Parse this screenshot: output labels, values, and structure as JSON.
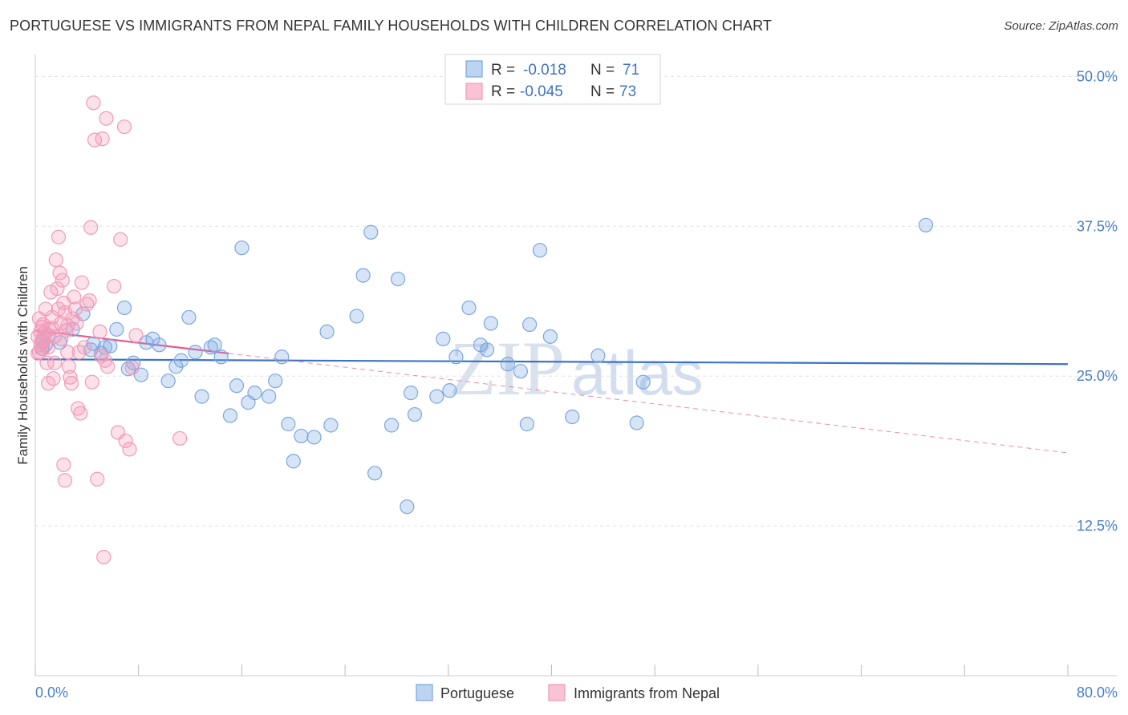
{
  "header": {
    "title": "PORTUGUESE VS IMMIGRANTS FROM NEPAL FAMILY HOUSEHOLDS WITH CHILDREN CORRELATION CHART",
    "source": "Source: ZipAtlas.com"
  },
  "watermark": {
    "zip": "ZIP",
    "atlas": "atlas"
  },
  "chart_data": {
    "type": "scatter",
    "ylabel": "Family Households with Children",
    "xlim": [
      0,
      80
    ],
    "ylim": [
      0,
      52.5
    ],
    "x_tick_labels": [
      "0.0%",
      "80.0%"
    ],
    "y_ticks": [
      12.5,
      25.0,
      37.5,
      50.0
    ],
    "y_tick_labels": [
      "12.5%",
      "25.0%",
      "37.5%",
      "50.0%"
    ],
    "grid": true,
    "legend_placement": "top-center",
    "legend": [
      {
        "r_label": "R =",
        "r_value": "-0.018",
        "n_label": "N =",
        "n_value": "71"
      },
      {
        "r_label": "R =",
        "r_value": "-0.045",
        "n_label": "N =",
        "n_value": "73"
      }
    ],
    "series": [
      {
        "name": "Portuguese",
        "color": "#7aa7e0",
        "line_color": "#3a74c8",
        "trend": {
          "x": [
            0,
            80
          ],
          "y": [
            26.4,
            26.0
          ]
        },
        "points": [
          [
            0.6,
            27.9
          ],
          [
            0.8,
            27.6
          ],
          [
            1.0,
            28.4
          ],
          [
            1.9,
            27.8
          ],
          [
            2.9,
            28.9
          ],
          [
            3.7,
            30.2
          ],
          [
            4.3,
            27.2
          ],
          [
            4.5,
            27.7
          ],
          [
            5.1,
            26.9
          ],
          [
            5.4,
            27.4
          ],
          [
            5.8,
            27.5
          ],
          [
            6.3,
            28.9
          ],
          [
            6.9,
            30.7
          ],
          [
            7.2,
            25.6
          ],
          [
            7.6,
            26.1
          ],
          [
            8.2,
            25.1
          ],
          [
            8.6,
            27.8
          ],
          [
            9.1,
            28.1
          ],
          [
            9.6,
            27.6
          ],
          [
            10.3,
            24.6
          ],
          [
            10.9,
            25.8
          ],
          [
            11.3,
            26.3
          ],
          [
            11.9,
            29.9
          ],
          [
            12.4,
            27.0
          ],
          [
            12.9,
            23.3
          ],
          [
            13.6,
            27.4
          ],
          [
            13.9,
            27.6
          ],
          [
            14.4,
            26.6
          ],
          [
            15.1,
            21.7
          ],
          [
            15.6,
            24.2
          ],
          [
            16.0,
            35.7
          ],
          [
            16.5,
            22.8
          ],
          [
            17.0,
            23.6
          ],
          [
            18.1,
            23.3
          ],
          [
            18.6,
            24.6
          ],
          [
            19.1,
            26.6
          ],
          [
            19.6,
            21.0
          ],
          [
            20.6,
            20.0
          ],
          [
            21.6,
            19.9
          ],
          [
            22.6,
            28.7
          ],
          [
            22.9,
            20.9
          ],
          [
            20.0,
            17.9
          ],
          [
            24.9,
            30.0
          ],
          [
            25.4,
            33.4
          ],
          [
            26.0,
            37.0
          ],
          [
            26.3,
            16.9
          ],
          [
            27.6,
            20.9
          ],
          [
            28.1,
            33.1
          ],
          [
            28.8,
            14.1
          ],
          [
            29.1,
            23.6
          ],
          [
            29.4,
            21.8
          ],
          [
            31.1,
            23.3
          ],
          [
            31.6,
            28.1
          ],
          [
            32.1,
            23.8
          ],
          [
            32.6,
            26.6
          ],
          [
            33.6,
            30.7
          ],
          [
            34.5,
            27.6
          ],
          [
            35.0,
            27.2
          ],
          [
            35.3,
            29.4
          ],
          [
            36.6,
            26.0
          ],
          [
            37.6,
            25.4
          ],
          [
            38.1,
            21.0
          ],
          [
            38.3,
            29.3
          ],
          [
            39.1,
            35.5
          ],
          [
            39.9,
            28.3
          ],
          [
            41.6,
            21.6
          ],
          [
            43.6,
            26.7
          ],
          [
            46.6,
            21.1
          ],
          [
            47.1,
            24.5
          ],
          [
            69.0,
            37.6
          ],
          [
            0.5,
            27.3
          ]
        ]
      },
      {
        "name": "Immigrants from Nepal",
        "color": "#f29ab8",
        "line_color": "#e85a8a",
        "trend": {
          "x": [
            0,
            80
          ],
          "y": [
            28.8,
            18.6
          ]
        },
        "trend_solid_until_x": 15.0,
        "points": [
          [
            0.2,
            28.3
          ],
          [
            0.2,
            26.9
          ],
          [
            0.3,
            29.8
          ],
          [
            0.4,
            27.6
          ],
          [
            0.5,
            29.1
          ],
          [
            0.5,
            28.0
          ],
          [
            0.6,
            27.3
          ],
          [
            0.7,
            28.6
          ],
          [
            0.8,
            30.6
          ],
          [
            0.9,
            26.1
          ],
          [
            1.0,
            27.4
          ],
          [
            1.1,
            28.9
          ],
          [
            1.2,
            32.0
          ],
          [
            1.3,
            29.0
          ],
          [
            1.4,
            24.8
          ],
          [
            1.5,
            28.3
          ],
          [
            1.6,
            34.7
          ],
          [
            1.7,
            32.3
          ],
          [
            1.8,
            30.6
          ],
          [
            1.8,
            36.6
          ],
          [
            1.9,
            33.6
          ],
          [
            2.0,
            29.4
          ],
          [
            2.1,
            33.0
          ],
          [
            2.2,
            31.1
          ],
          [
            2.3,
            30.3
          ],
          [
            2.4,
            28.8
          ],
          [
            2.5,
            29.2
          ],
          [
            2.2,
            17.6
          ],
          [
            2.3,
            16.3
          ],
          [
            2.5,
            27.0
          ],
          [
            2.6,
            25.8
          ],
          [
            2.7,
            24.9
          ],
          [
            2.8,
            24.4
          ],
          [
            2.9,
            29.8
          ],
          [
            3.0,
            31.6
          ],
          [
            3.1,
            30.6
          ],
          [
            3.2,
            29.4
          ],
          [
            3.3,
            22.3
          ],
          [
            3.4,
            27.0
          ],
          [
            3.5,
            21.9
          ],
          [
            3.6,
            32.8
          ],
          [
            3.8,
            27.4
          ],
          [
            4.0,
            31.0
          ],
          [
            4.2,
            31.3
          ],
          [
            4.3,
            37.4
          ],
          [
            4.4,
            24.5
          ],
          [
            4.5,
            47.8
          ],
          [
            4.6,
            44.7
          ],
          [
            4.8,
            16.4
          ],
          [
            5.0,
            28.7
          ],
          [
            5.1,
            26.7
          ],
          [
            5.2,
            44.8
          ],
          [
            5.3,
            9.9
          ],
          [
            5.4,
            26.3
          ],
          [
            5.5,
            46.5
          ],
          [
            5.6,
            25.8
          ],
          [
            6.1,
            32.5
          ],
          [
            6.4,
            20.3
          ],
          [
            6.6,
            36.4
          ],
          [
            6.9,
            45.8
          ],
          [
            7.0,
            19.6
          ],
          [
            7.3,
            18.9
          ],
          [
            7.5,
            25.7
          ],
          [
            7.8,
            28.4
          ],
          [
            11.2,
            19.8
          ],
          [
            1.0,
            24.4
          ],
          [
            1.5,
            26.1
          ],
          [
            0.3,
            27.0
          ],
          [
            0.4,
            28.7
          ],
          [
            0.6,
            29.3
          ],
          [
            1.3,
            29.9
          ],
          [
            2.0,
            28.1
          ],
          [
            0.7,
            28.2
          ]
        ]
      }
    ]
  }
}
